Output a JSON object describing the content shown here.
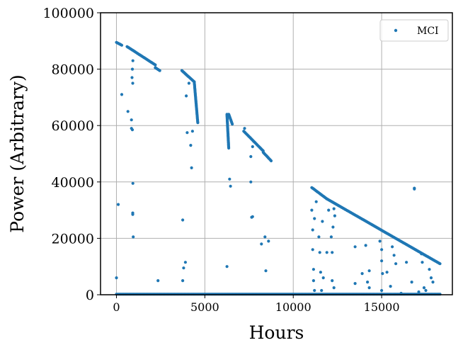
{
  "chart_data": {
    "type": "scatter",
    "title": "",
    "xlabel": "Hours",
    "ylabel": "Power (Arbitrary)",
    "xlim": [
      -900,
      19000
    ],
    "ylim": [
      0,
      100000
    ],
    "xticks": [
      0,
      5000,
      10000,
      15000
    ],
    "yticks": [
      0,
      20000,
      40000,
      60000,
      80000,
      100000
    ],
    "grid": true,
    "legend": {
      "position": "top-right",
      "entries": [
        "MCI"
      ]
    },
    "series": [
      {
        "name": "MCI",
        "color": "#1f77b4",
        "marker": "circle",
        "segments": [
          {
            "x": [
              0,
              300
            ],
            "y": [
              89500,
              88500
            ]
          },
          {
            "x": [
              600,
              2200
            ],
            "y": [
              88000,
              81500
            ]
          },
          {
            "x": [
              2200,
              2450
            ],
            "y": [
              80500,
              79500
            ]
          },
          {
            "x": [
              3700,
              4400
            ],
            "y": [
              79500,
              75500
            ]
          },
          {
            "x": [
              4400,
              4600
            ],
            "y": [
              75500,
              61000
            ]
          },
          {
            "x": [
              6250,
              6350
            ],
            "y": [
              64000,
              52000
            ]
          },
          {
            "x": [
              6350,
              6550
            ],
            "y": [
              64000,
              60500
            ]
          },
          {
            "x": [
              7200,
              8300
            ],
            "y": [
              58000,
              51000
            ]
          },
          {
            "x": [
              8300,
              8750
            ],
            "y": [
              50500,
              47500
            ]
          },
          {
            "x": [
              11050,
              11900
            ],
            "y": [
              38000,
              34000
            ]
          },
          {
            "x": [
              11900,
              18300
            ],
            "y": [
              34000,
              11000
            ]
          }
        ],
        "baseline": {
          "x": [
            0,
            18300
          ],
          "y": 200
        },
        "outliers": [
          {
            "x": 0,
            "y": 6000
          },
          {
            "x": 100,
            "y": 32000
          },
          {
            "x": 300,
            "y": 71000
          },
          {
            "x": 650,
            "y": 65000
          },
          {
            "x": 850,
            "y": 62000
          },
          {
            "x": 850,
            "y": 59000
          },
          {
            "x": 900,
            "y": 58500
          },
          {
            "x": 920,
            "y": 75000
          },
          {
            "x": 880,
            "y": 77000
          },
          {
            "x": 900,
            "y": 80000
          },
          {
            "x": 930,
            "y": 83000
          },
          {
            "x": 930,
            "y": 39500
          },
          {
            "x": 920,
            "y": 29000
          },
          {
            "x": 920,
            "y": 28500
          },
          {
            "x": 950,
            "y": 20500
          },
          {
            "x": 2350,
            "y": 5000
          },
          {
            "x": 3750,
            "y": 26500
          },
          {
            "x": 3750,
            "y": 5000
          },
          {
            "x": 3900,
            "y": 11500
          },
          {
            "x": 3800,
            "y": 9500
          },
          {
            "x": 3950,
            "y": 70500
          },
          {
            "x": 4000,
            "y": 57500
          },
          {
            "x": 4100,
            "y": 75000
          },
          {
            "x": 4200,
            "y": 53000
          },
          {
            "x": 4250,
            "y": 45000
          },
          {
            "x": 4300,
            "y": 58000
          },
          {
            "x": 6250,
            "y": 10000
          },
          {
            "x": 6400,
            "y": 41000
          },
          {
            "x": 6450,
            "y": 38500
          },
          {
            "x": 7250,
            "y": 59000
          },
          {
            "x": 7600,
            "y": 49000
          },
          {
            "x": 7600,
            "y": 40000
          },
          {
            "x": 7650,
            "y": 27500
          },
          {
            "x": 7700,
            "y": 27700
          },
          {
            "x": 7700,
            "y": 52500
          },
          {
            "x": 8200,
            "y": 18000
          },
          {
            "x": 8400,
            "y": 20500
          },
          {
            "x": 8450,
            "y": 8500
          },
          {
            "x": 8600,
            "y": 19000
          },
          {
            "x": 11050,
            "y": 30000
          },
          {
            "x": 11100,
            "y": 23000
          },
          {
            "x": 11100,
            "y": 16000
          },
          {
            "x": 11150,
            "y": 9000
          },
          {
            "x": 11150,
            "y": 5000
          },
          {
            "x": 11200,
            "y": 1500
          },
          {
            "x": 11200,
            "y": 27000
          },
          {
            "x": 11300,
            "y": 33000
          },
          {
            "x": 11450,
            "y": 20500
          },
          {
            "x": 11500,
            "y": 15000
          },
          {
            "x": 11550,
            "y": 8000
          },
          {
            "x": 11600,
            "y": 1500
          },
          {
            "x": 11650,
            "y": 26000
          },
          {
            "x": 11700,
            "y": 6000
          },
          {
            "x": 11900,
            "y": 15000
          },
          {
            "x": 12000,
            "y": 30000
          },
          {
            "x": 12150,
            "y": 20500
          },
          {
            "x": 12200,
            "y": 15000
          },
          {
            "x": 12200,
            "y": 5000
          },
          {
            "x": 12250,
            "y": 24000
          },
          {
            "x": 12300,
            "y": 30500
          },
          {
            "x": 12300,
            "y": 2500
          },
          {
            "x": 12350,
            "y": 28000
          },
          {
            "x": 13500,
            "y": 17000
          },
          {
            "x": 13500,
            "y": 4000
          },
          {
            "x": 13900,
            "y": 7500
          },
          {
            "x": 14100,
            "y": 17500
          },
          {
            "x": 14200,
            "y": 4500
          },
          {
            "x": 14300,
            "y": 8500
          },
          {
            "x": 14300,
            "y": 2500
          },
          {
            "x": 14900,
            "y": 19000
          },
          {
            "x": 15000,
            "y": 16000
          },
          {
            "x": 15000,
            "y": 12000
          },
          {
            "x": 15050,
            "y": 7500
          },
          {
            "x": 15000,
            "y": 1500
          },
          {
            "x": 15300,
            "y": 8000
          },
          {
            "x": 15500,
            "y": 3000
          },
          {
            "x": 15600,
            "y": 17000
          },
          {
            "x": 15700,
            "y": 14000
          },
          {
            "x": 15800,
            "y": 11000
          },
          {
            "x": 16100,
            "y": 500
          },
          {
            "x": 16400,
            "y": 11500
          },
          {
            "x": 16700,
            "y": 4500
          },
          {
            "x": 16850,
            "y": 37500
          },
          {
            "x": 16850,
            "y": 37800
          },
          {
            "x": 17100,
            "y": 1000
          },
          {
            "x": 17250,
            "y": 14500
          },
          {
            "x": 17300,
            "y": 11500
          },
          {
            "x": 17400,
            "y": 2500
          },
          {
            "x": 17500,
            "y": 1500
          },
          {
            "x": 17700,
            "y": 9000
          },
          {
            "x": 17800,
            "y": 6000
          },
          {
            "x": 17900,
            "y": 4500
          }
        ]
      }
    ]
  }
}
